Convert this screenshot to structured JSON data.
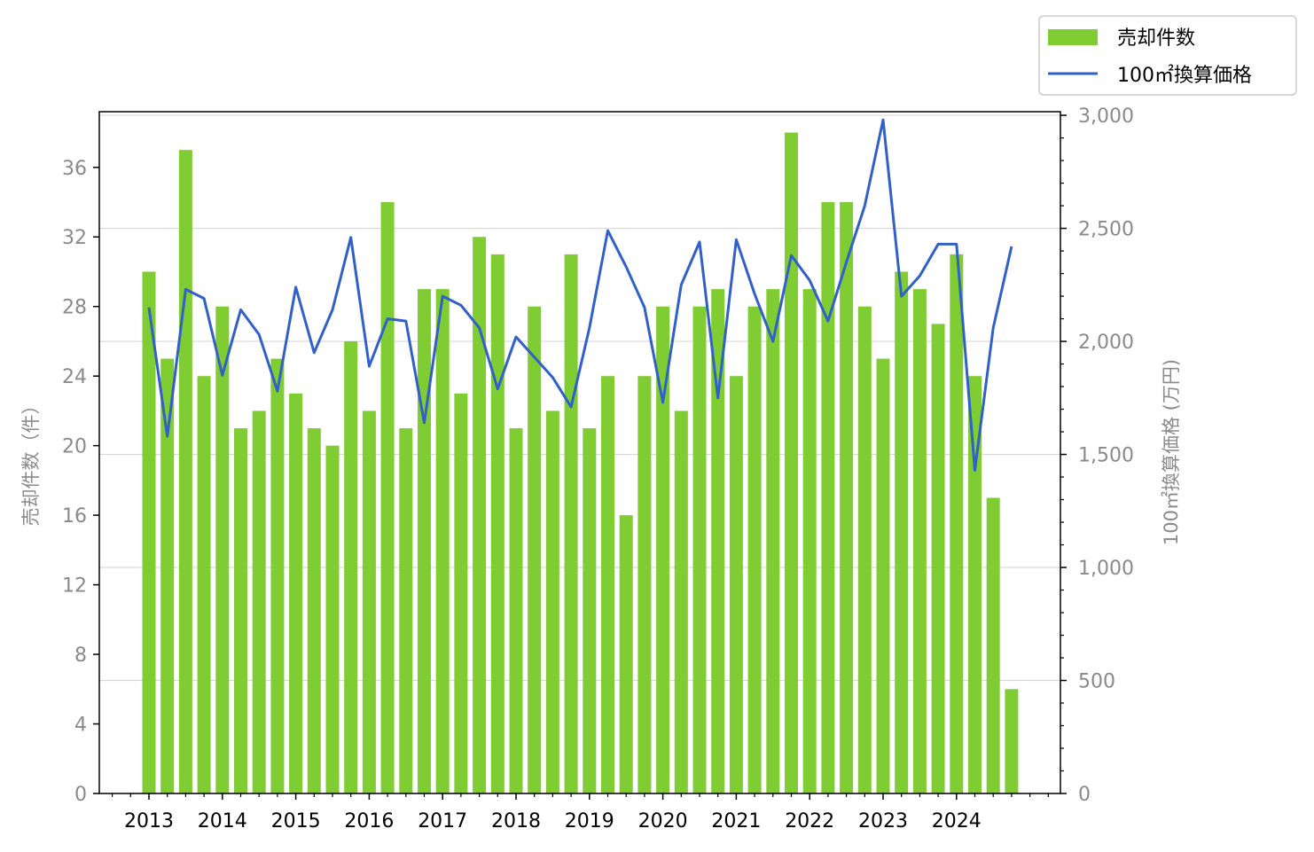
{
  "chart_data": {
    "type": "bar",
    "x_tick_labels": [
      "2013",
      "2014",
      "2015",
      "2016",
      "2017",
      "2018",
      "2019",
      "2020",
      "2021",
      "2022",
      "2023",
      "2024"
    ],
    "ylabel_left": "売却件数（件）",
    "ylabel_right": "100㎡換算価格 (万円)",
    "ylim_left": [
      0,
      39.2
    ],
    "yticks_left": [
      0,
      4,
      8,
      12,
      16,
      20,
      24,
      28,
      32,
      36
    ],
    "ylim_right": [
      0,
      3016
    ],
    "yticks_right": [
      0,
      500,
      1000,
      1500,
      2000,
      2500,
      3000
    ],
    "ytick_labels_right": [
      "0",
      "500",
      "1,000",
      "1,500",
      "2,000",
      "2,500",
      "3,000"
    ],
    "grid": "horizontal (right axis)",
    "legend_position": "top-right, outside plot",
    "series": [
      {
        "name": "売却件数",
        "type": "bar",
        "axis": "left",
        "color": "#7fcc33",
        "x": [
          "2013-Q1",
          "2013-Q2",
          "2013-Q3",
          "2013-Q4",
          "2014-Q1",
          "2014-Q2",
          "2014-Q3",
          "2014-Q4",
          "2015-Q1",
          "2015-Q2",
          "2015-Q3",
          "2015-Q4",
          "2016-Q1",
          "2016-Q2",
          "2016-Q3",
          "2016-Q4",
          "2017-Q1",
          "2017-Q2",
          "2017-Q3",
          "2017-Q4",
          "2018-Q1",
          "2018-Q2",
          "2018-Q3",
          "2018-Q4",
          "2019-Q1",
          "2019-Q2",
          "2019-Q3",
          "2019-Q4",
          "2020-Q1",
          "2020-Q2",
          "2020-Q3",
          "2020-Q4",
          "2021-Q1",
          "2021-Q2",
          "2021-Q3",
          "2021-Q4",
          "2022-Q1",
          "2022-Q2",
          "2022-Q3",
          "2022-Q4",
          "2023-Q1",
          "2023-Q2",
          "2023-Q3",
          "2023-Q4",
          "2024-Q1",
          "2024-Q2",
          "2024-Q3",
          "2024-Q4"
        ],
        "values": [
          30,
          25,
          37,
          24,
          28,
          21,
          22,
          25,
          23,
          21,
          20,
          26,
          22,
          34,
          21,
          29,
          29,
          23,
          32,
          31,
          21,
          28,
          22,
          31,
          21,
          24,
          16,
          24,
          28,
          22,
          28,
          29,
          24,
          28,
          29,
          38,
          29,
          34,
          34,
          28,
          25,
          30,
          29,
          27,
          31,
          24,
          17,
          6
        ]
      },
      {
        "name": "100㎡換算価格",
        "type": "line",
        "axis": "right",
        "color": "#3060c8",
        "x": [
          "2013-Q1",
          "2013-Q2",
          "2013-Q3",
          "2013-Q4",
          "2014-Q1",
          "2014-Q2",
          "2014-Q3",
          "2014-Q4",
          "2015-Q1",
          "2015-Q2",
          "2015-Q3",
          "2015-Q4",
          "2016-Q1",
          "2016-Q2",
          "2016-Q3",
          "2016-Q4",
          "2017-Q1",
          "2017-Q2",
          "2017-Q3",
          "2017-Q4",
          "2018-Q1",
          "2018-Q2",
          "2018-Q3",
          "2018-Q4",
          "2019-Q1",
          "2019-Q2",
          "2019-Q3",
          "2019-Q4",
          "2020-Q1",
          "2020-Q2",
          "2020-Q3",
          "2020-Q4",
          "2021-Q1",
          "2021-Q2",
          "2021-Q3",
          "2021-Q4",
          "2022-Q1",
          "2022-Q2",
          "2022-Q3",
          "2022-Q4",
          "2023-Q1",
          "2023-Q2",
          "2023-Q3",
          "2023-Q4",
          "2024-Q1",
          "2024-Q2",
          "2024-Q3",
          "2024-Q4"
        ],
        "values": [
          2150,
          1580,
          2230,
          2190,
          1850,
          2140,
          2030,
          1780,
          2240,
          1950,
          2140,
          2460,
          1890,
          2100,
          2090,
          1640,
          2200,
          2160,
          2060,
          1790,
          2020,
          1930,
          1840,
          1710,
          2060,
          2490,
          2330,
          2150,
          1730,
          2250,
          2440,
          1750,
          2450,
          2210,
          2000,
          2380,
          2270,
          2090,
          2350,
          2600,
          2980,
          2200,
          2290,
          2430,
          2430,
          1430,
          2060,
          2420
        ]
      }
    ]
  }
}
